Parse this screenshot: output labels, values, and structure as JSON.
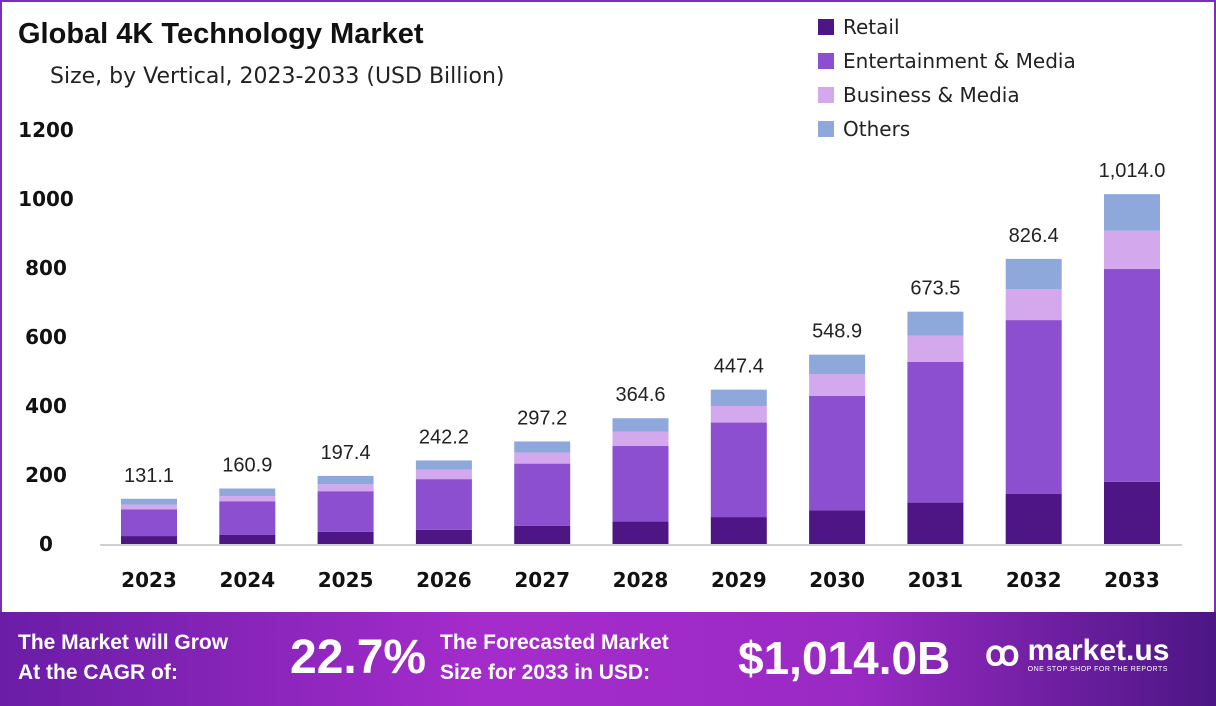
{
  "chart_data": {
    "type": "bar",
    "stacked": true,
    "title": "Global 4K Technology Market",
    "subtitle": "Size, by Vertical, 2023-2033 (USD Billion)",
    "categories": [
      "2023",
      "2024",
      "2025",
      "2026",
      "2027",
      "2028",
      "2029",
      "2030",
      "2031",
      "2032",
      "2033"
    ],
    "series": [
      {
        "name": "Retail",
        "color": "#4e1585",
        "values": [
          23,
          27,
          35,
          41,
          53,
          65,
          78,
          97,
          120,
          145,
          180
        ]
      },
      {
        "name": "Entertainment & Media",
        "color": "#8b4fcf",
        "values": [
          77,
          97,
          118,
          147,
          180,
          219,
          274,
          332,
          408,
          504,
          617
        ]
      },
      {
        "name": "Business & Media",
        "color": "#d3a8ec",
        "values": [
          14,
          15,
          20,
          28,
          32,
          42,
          48,
          63,
          76,
          90,
          111
        ]
      },
      {
        "name": "Others",
        "color": "#8fa8dc",
        "values": [
          17.1,
          21.9,
          24.4,
          26.2,
          32.2,
          38.6,
          47.4,
          56.9,
          69.5,
          87.4,
          106
        ]
      }
    ],
    "totals": [
      "131.1",
      "160.9",
      "197.4",
      "242.2",
      "297.2",
      "364.6",
      "447.4",
      "548.9",
      "673.5",
      "826.4",
      "1,014.0"
    ],
    "ylim": [
      0,
      1200
    ],
    "yticks": [
      "0",
      "200",
      "400",
      "600",
      "800",
      "1000",
      "1200"
    ],
    "grid": false,
    "legend_position": "top-right"
  },
  "footer": {
    "cagr_label_1": "The Market will Grow",
    "cagr_label_2": "At the CAGR of:",
    "cagr_value": "22.7%",
    "forecast_label_1": "The Forecasted Market",
    "forecast_label_2": "Size for 2033 in USD:",
    "forecast_value": "$1,014.0B",
    "brand": "market.us",
    "brand_tagline": "ONE STOP SHOP FOR THE REPORTS"
  }
}
